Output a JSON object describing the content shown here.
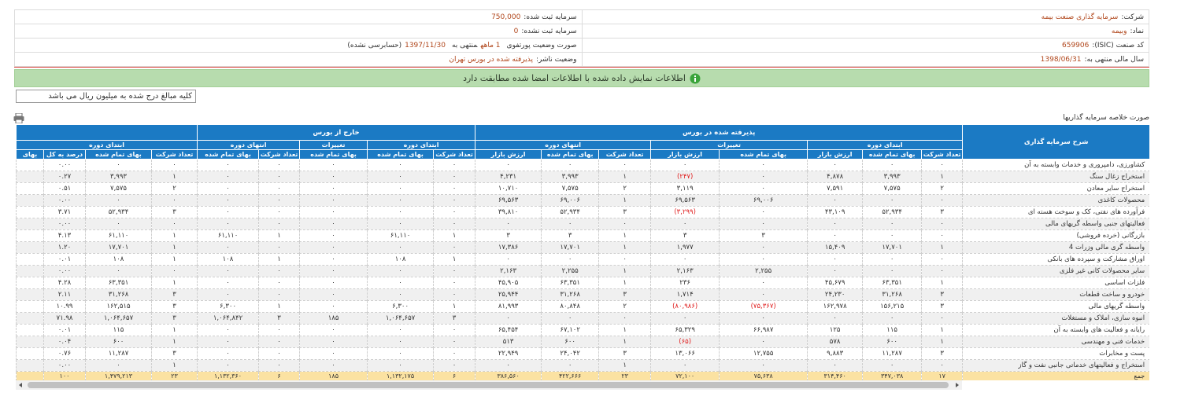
{
  "info": [
    [
      {
        "label": "شرکت:",
        "value": "سرمایه گذاری صنعت بیمه"
      },
      {
        "label": "سرمایه ثبت شده:",
        "value": "750,000"
      }
    ],
    [
      {
        "label": "نماد:",
        "value": "وبیمه"
      },
      {
        "label": "سرمایه ثبت نشده:",
        "value": "0"
      }
    ],
    [
      {
        "label": "کد صنعت (ISIC):",
        "value": "659906"
      },
      {
        "parts": [
          {
            "text": "صورت وضعیت پورتفوی"
          },
          {
            "text": "1 ماهه",
            "highlight": true
          },
          {
            "text": "منتهی به"
          },
          {
            "text": "1397/11/30",
            "highlight": true
          },
          {
            "text": "(حسابرسی نشده)"
          }
        ]
      }
    ],
    [
      {
        "label": "سال مالی منتهی به:",
        "value": "1398/06/31"
      },
      {
        "label": "وضعیت ناشر:",
        "value": "پذیرفته شده در بورس تهران"
      }
    ]
  ],
  "notice": "اطلاعات نمایش داده شده با اطلاعات امضا شده مطابقت دارد",
  "unit_note": "کلیه مبالغ درج شده به میلیون ریال می باشد",
  "table": {
    "title": "صورت خلاصه سرمایه گذاریها",
    "label_header": "شرح سرمایه گذاری",
    "groups": [
      "پذیرفته شده در بورس",
      "خارج از بورس"
    ],
    "periods": [
      "ابتدای دوره",
      "تغییرات",
      "انتهای دوره",
      "ابتدای دوره",
      "تغییرات",
      "انتهای دوره",
      "ابتدای دوره"
    ],
    "columns": [
      "تعداد شرکت",
      "بهای تمام شده",
      "ارزش بازار",
      "بهای تمام شده",
      "ارزش بازار",
      "تعداد شرکت",
      "بهای تمام شده",
      "ارزش بازار",
      "تعداد شرکت",
      "بهای تمام شده",
      "بهای تمام شده",
      "تعداد شرکت",
      "بهای تمام شده",
      "تعداد شرکت",
      "بهای تمام شده",
      "درصد به کل",
      "بهای"
    ],
    "rows": [
      {
        "label": "کشاورزی، دامپروری و خدمات وابسته به آن",
        "cells": [
          "۰",
          "۰",
          "۰",
          "۰",
          "۰",
          "۰",
          "۰",
          "۰",
          "۰",
          "۰",
          "۰",
          "۰",
          "۰",
          "۰",
          "۰",
          "۰.۰۰"
        ]
      },
      {
        "label": "استخراج زغال سنگ",
        "cells": [
          "۱",
          "۳,۹۹۳",
          "۴,۸۷۸",
          "۰",
          "(۲۴۷)",
          "۱",
          "۳,۹۹۳",
          "۴,۲۳۱",
          "۰",
          "۰",
          "۰",
          "۰",
          "۰",
          "۱",
          "۳,۹۹۳",
          "۰.۲۷"
        ]
      },
      {
        "label": "استخراج سایر معادن",
        "cells": [
          "۲",
          "۷,۵۷۵",
          "۷,۵۹۱",
          "۰",
          "۳,۱۱۹",
          "۲",
          "۷,۵۷۵",
          "۱۰,۷۱۰",
          "۰",
          "۰",
          "۰",
          "۰",
          "۰",
          "۲",
          "۷,۵۷۵",
          "۰.۵۱"
        ]
      },
      {
        "label": "محصولات کاغذی",
        "cells": [
          "۰",
          "۰",
          "۰",
          "۶۹,۰۰۶",
          "۶۹,۵۶۳",
          "۱",
          "۶۹,۰۰۶",
          "۶۹,۵۶۳",
          "۰",
          "۰",
          "۰",
          "۰",
          "۰",
          "۰",
          "۰",
          "۰.۰۰"
        ]
      },
      {
        "label": "فرآورده های نفتی، کک و سوخت هسته ای",
        "cells": [
          "۳",
          "۵۲,۹۳۴",
          "۴۳,۱۰۹",
          "۰",
          "(۳,۲۹۹)",
          "۳",
          "۵۲,۹۳۴",
          "۳۹,۸۱۰",
          "۰",
          "۰",
          "۰",
          "۰",
          "۰",
          "۳",
          "۵۲,۹۳۴",
          "۳.۷۱"
        ]
      },
      {
        "label": "فعالیتهای جنبی واسطه گریهای مالی",
        "cells": [
          "۰",
          "۰",
          "۰",
          "۰",
          "۰",
          "۰",
          "۰",
          "۰",
          "۰",
          "۰",
          "۰",
          "۰",
          "۰",
          "۰",
          "۰",
          "۰.۰۰"
        ]
      },
      {
        "label": "بازرگانی (خرده فروشی)",
        "cells": [
          "۰",
          "۰",
          "۰",
          "۳",
          "۳",
          "۱",
          "۳",
          "۳",
          "۱",
          "۶۱,۱۱۰",
          "۰",
          "۱",
          "۶۱,۱۱۰",
          "۱",
          "۶۱,۱۱۰",
          "۴.۱۳"
        ]
      },
      {
        "label": "واسطه گری مالی وزرات 4",
        "cells": [
          "۱",
          "۱۷,۷۰۱",
          "۱۵,۴۰۹",
          "۰",
          "۱,۹۷۷",
          "۱",
          "۱۷,۷۰۱",
          "۱۷,۳۸۶",
          "۰",
          "۰",
          "۰",
          "۰",
          "۰",
          "۱",
          "۱۷,۷۰۱",
          "۱.۲۰"
        ]
      },
      {
        "label": "اوراق مشارکت و سپرده های بانکی",
        "cells": [
          "۰",
          "۰",
          "۰",
          "۰",
          "۰",
          "۰",
          "۰",
          "۰",
          "۱",
          "۱۰۸",
          "۰",
          "۱",
          "۱۰۸",
          "۱",
          "۱۰۸",
          "۰.۰۱"
        ]
      },
      {
        "label": "سایر محصولات کانی غیر فلزی",
        "cells": [
          "۰",
          "۰",
          "۰",
          "۲,۲۵۵",
          "۲,۱۶۳",
          "۱",
          "۲,۲۵۵",
          "۲,۱۶۳",
          "۰",
          "۰",
          "۰",
          "۰",
          "۰",
          "۰",
          "۰",
          "۰.۰۰"
        ]
      },
      {
        "label": "فلزات اساسی",
        "cells": [
          "۱",
          "۶۳,۳۵۱",
          "۴۵,۶۷۹",
          "۰",
          "۲۳۶",
          "۱",
          "۶۳,۳۵۱",
          "۴۵,۹۰۵",
          "۰",
          "۰",
          "۰",
          "۰",
          "۰",
          "۱",
          "۶۳,۳۵۱",
          "۴.۲۸"
        ]
      },
      {
        "label": "خودرو و ساخت قطعات",
        "cells": [
          "۳",
          "۳۱,۲۶۸",
          "۲۴,۲۳۰",
          "۰",
          "۱,۷۱۴",
          "۳",
          "۳۱,۲۶۸",
          "۲۵,۹۴۴",
          "۰",
          "۰",
          "۰",
          "۰",
          "۰",
          "۳",
          "۳۱,۲۶۸",
          "۲.۱۱"
        ]
      },
      {
        "label": "واسطه گریهای مالی",
        "cells": [
          "۳",
          "۱۵۶,۲۱۵",
          "۱۶۲,۹۷۸",
          "(۷۵,۳۶۷)",
          "(۸۰,۹۸۶)",
          "۲",
          "۸۰,۸۴۸",
          "۸۱,۹۹۳",
          "۱",
          "۶,۳۰۰",
          "۰",
          "۱",
          "۶,۳۰۰",
          "۳",
          "۱۶۲,۵۱۵",
          "۱۰.۹۹"
        ]
      },
      {
        "label": "انبوه سازی، املاک و مستغلات",
        "cells": [
          "۰",
          "۰",
          "۰",
          "۰",
          "۰",
          "۰",
          "۰",
          "۰",
          "۳",
          "۱,۰۶۴,۶۵۷",
          "۱۸۵",
          "۳",
          "۱,۰۶۴,۸۴۲",
          "۳",
          "۱,۰۶۴,۶۵۷",
          "۷۱.۹۸"
        ]
      },
      {
        "label": "رایانه و فعالیت های وابسته به آن",
        "cells": [
          "۱",
          "۱۱۵",
          "۱۲۵",
          "۶۶,۹۸۷",
          "۶۵,۳۲۹",
          "۱",
          "۶۷,۱۰۲",
          "۶۵,۴۵۴",
          "۰",
          "۰",
          "۰",
          "۰",
          "۰",
          "۱",
          "۱۱۵",
          "۰.۰۱"
        ]
      },
      {
        "label": "خدمات فنی و مهندسی",
        "cells": [
          "۱",
          "۶۰۰",
          "۵۷۸",
          "۰",
          "(۶۵)",
          "۱",
          "۶۰۰",
          "۵۱۳",
          "۰",
          "۰",
          "۰",
          "۰",
          "۰",
          "۱",
          "۶۰۰",
          "۰.۰۴"
        ]
      },
      {
        "label": "پست و مخابرات",
        "cells": [
          "۳",
          "۱۱,۲۸۷",
          "۹,۸۸۳",
          "۱۲,۷۵۵",
          "۱۳,۰۶۶",
          "۳",
          "۲۴,۰۴۲",
          "۲۲,۹۴۹",
          "۰",
          "۰",
          "۰",
          "۰",
          "۰",
          "۳",
          "۱۱,۲۸۷",
          "۰.۷۶"
        ]
      },
      {
        "label": "استخراج و فعالیتهای خدماتی جانبی نفت و گاز",
        "cells": [
          "۰",
          "۰",
          "۰",
          "۰",
          "۰",
          "۱",
          "۰",
          "۰",
          "۰",
          "۰",
          "۰",
          "۰",
          "۰",
          "۱",
          "۰",
          "۰.۰۰"
        ]
      }
    ],
    "total": {
      "label": "جمع",
      "cells": [
        "۱۷",
        "۳۴۷,۰۳۸",
        "۳۱۴,۴۶۰",
        "۷۵,۶۳۸",
        "۷۲,۱۰۰",
        "۲۳",
        "۴۲۲,۶۶۶",
        "۳۸۶,۵۶۰",
        "۶",
        "۱,۱۳۲,۱۷۵",
        "۱۸۵",
        "۶",
        "۱,۱۳۲,۳۶۰",
        "۲۳",
        "۱,۴۷۹,۲۱۳",
        "۱۰۰"
      ]
    }
  }
}
